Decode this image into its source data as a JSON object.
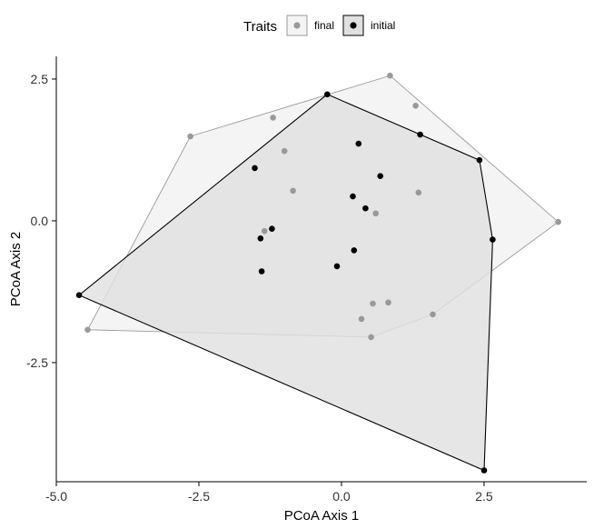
{
  "chart_data": {
    "type": "scatter",
    "title": "",
    "xlabel": "PCoA Axis 1",
    "ylabel": "PCoA Axis 2",
    "xlim": [
      -5.0,
      4.3
    ],
    "ylim": [
      -4.6,
      2.9
    ],
    "xticks": [
      -5.0,
      -2.5,
      0.0,
      2.5
    ],
    "xtick_labels": [
      "-5.0",
      "-2.5",
      "0.0",
      "2.5"
    ],
    "yticks": [
      2.5,
      0.0,
      -2.5
    ],
    "ytick_labels": [
      "2.5",
      "0.0",
      "-2.5"
    ],
    "grid": false,
    "legend": {
      "title": "Traits",
      "position": "top",
      "entries": [
        "final",
        "initial"
      ]
    },
    "series": [
      {
        "name": "final",
        "color": "#999999",
        "hull_fill": "#f4f4f4",
        "hull_stroke": "#9a9a9a",
        "points": [
          [
            0.85,
            2.56
          ],
          [
            1.3,
            2.03
          ],
          [
            -1.2,
            1.82
          ],
          [
            -2.65,
            1.49
          ],
          [
            -1.0,
            1.23
          ],
          [
            -0.85,
            0.53
          ],
          [
            1.35,
            0.5
          ],
          [
            0.6,
            0.13
          ],
          [
            -1.35,
            -0.18
          ],
          [
            3.8,
            -0.02
          ],
          [
            0.55,
            -1.46
          ],
          [
            0.82,
            -1.44
          ],
          [
            1.6,
            -1.65
          ],
          [
            0.35,
            -1.73
          ],
          [
            0.52,
            -2.05
          ],
          [
            -4.45,
            -1.92
          ]
        ],
        "hull": [
          [
            0.85,
            2.56
          ],
          [
            3.8,
            -0.02
          ],
          [
            1.6,
            -1.65
          ],
          [
            0.52,
            -2.05
          ],
          [
            -4.45,
            -1.92
          ],
          [
            -2.65,
            1.49
          ]
        ]
      },
      {
        "name": "initial",
        "color": "#000000",
        "hull_fill": "#e0e0e0",
        "hull_stroke": "#000000",
        "points": [
          [
            -0.25,
            2.23
          ],
          [
            1.38,
            1.52
          ],
          [
            0.3,
            1.36
          ],
          [
            2.42,
            1.07
          ],
          [
            -1.52,
            0.93
          ],
          [
            0.68,
            0.79
          ],
          [
            0.2,
            0.43
          ],
          [
            0.42,
            0.22
          ],
          [
            -1.22,
            -0.14
          ],
          [
            -1.42,
            -0.31
          ],
          [
            2.65,
            -0.33
          ],
          [
            0.22,
            -0.52
          ],
          [
            -0.08,
            -0.8
          ],
          [
            -1.4,
            -0.89
          ],
          [
            -4.6,
            -1.31
          ],
          [
            2.5,
            -4.4
          ]
        ],
        "hull": [
          [
            -0.25,
            2.23
          ],
          [
            2.42,
            1.07
          ],
          [
            2.65,
            -0.33
          ],
          [
            2.5,
            -4.4
          ],
          [
            -4.6,
            -1.31
          ]
        ]
      }
    ]
  }
}
